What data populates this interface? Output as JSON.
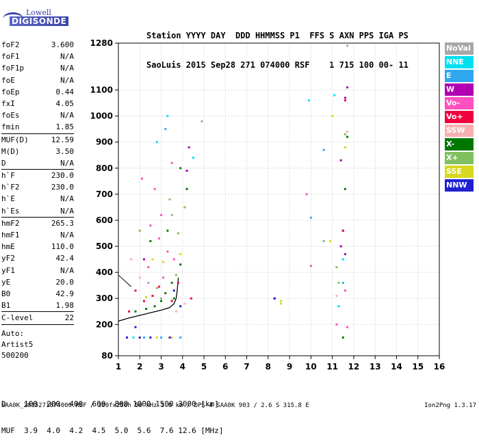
{
  "logo": {
    "line1": "Lowell",
    "line2": "DIGISONDE"
  },
  "header": {
    "row1": "Station YYYY DAY  DDD HHMMSS P1  FFS S AXN PPS IGA PS",
    "row2": "SaoLuis 2015 Sep28 271 074000 RSF    1 715 100 00- 11"
  },
  "params": [
    {
      "name": "foF2",
      "value": "3.600"
    },
    {
      "name": "foF1",
      "value": "N/A"
    },
    {
      "name": "foF1p",
      "value": "N/A"
    },
    {
      "name": "foE",
      "value": "N/A"
    },
    {
      "name": "foEp",
      "value": "0.44"
    },
    {
      "name": "fxI",
      "value": "4.05"
    },
    {
      "name": "foEs",
      "value": "N/A"
    },
    {
      "name": "fmin",
      "value": "1.85",
      "sep": true
    },
    {
      "name": "MUF(D)",
      "value": "12.59"
    },
    {
      "name": "M(D)",
      "value": "3.50"
    },
    {
      "name": "D",
      "value": "N/A",
      "sep": true
    },
    {
      "name": "h`F",
      "value": "230.0"
    },
    {
      "name": "h`F2",
      "value": "230.0"
    },
    {
      "name": "h`E",
      "value": "N/A"
    },
    {
      "name": "h`Es",
      "value": "N/A",
      "sep": true
    },
    {
      "name": "hmF2",
      "value": "265.3"
    },
    {
      "name": "hmF1",
      "value": "N/A"
    },
    {
      "name": "hmE",
      "value": "110.0"
    },
    {
      "name": "yF2",
      "value": "42.4"
    },
    {
      "name": "yF1",
      "value": "N/A"
    },
    {
      "name": "yE",
      "value": "20.0"
    },
    {
      "name": "B0",
      "value": "42.9"
    },
    {
      "name": "B1",
      "value": "1.98",
      "sep": true
    },
    {
      "name": "C-level",
      "value": "22",
      "sep": true
    }
  ],
  "auto": {
    "line1": "Auto:",
    "line2": "Artist5",
    "line3": "500200"
  },
  "muf_table": {
    "row1": "D    100  200  400  600  800 1000 1500 3000 [km]",
    "row2": "MUF  3.9  4.0  4.2  4.5  5.0  5.6  7.6 12.6 [MHz]"
  },
  "footer": "SAA0K_2015271074000.RSF / 300fx256h 50 kHz 5.0 km / DPS-4 SAA0K 903 / 2.6 S 315.8 E",
  "version": "Ion2Png 1.3.17",
  "legend": [
    {
      "label": "NoVal",
      "color": "#a8a8a8"
    },
    {
      "label": "NNE",
      "color": "#00e0f0"
    },
    {
      "label": "E",
      "color": "#30a8f0"
    },
    {
      "label": "W",
      "color": "#b000b0"
    },
    {
      "label": "Vo-",
      "color": "#ff50c0"
    },
    {
      "label": "Vo+",
      "color": "#f00040"
    },
    {
      "label": "SSW",
      "color": "#f8b0b0"
    },
    {
      "label": "X-",
      "color": "#007800"
    },
    {
      "label": "X+",
      "color": "#80c060"
    },
    {
      "label": "SSE",
      "color": "#d8d820"
    },
    {
      "label": "NNW",
      "color": "#2020d0"
    }
  ],
  "chart_data": {
    "type": "scatter",
    "xlim": [
      1,
      16
    ],
    "ylim": [
      80,
      1280
    ],
    "x_ticks": [
      1,
      2,
      3,
      4,
      5,
      6,
      7,
      8,
      9,
      10,
      11,
      12,
      13,
      14,
      15,
      16
    ],
    "y_ticks": [
      80,
      200,
      300,
      400,
      500,
      600,
      700,
      800,
      900,
      1000,
      1100,
      1280
    ],
    "grid": true,
    "legend_position": "right",
    "trace": [
      [
        1.0,
        213
      ],
      [
        1.5,
        225
      ],
      [
        2.0,
        235
      ],
      [
        2.5,
        245
      ],
      [
        3.0,
        255
      ],
      [
        3.4,
        265
      ],
      [
        3.6,
        280
      ],
      [
        3.7,
        300
      ],
      [
        3.75,
        330
      ],
      [
        3.8,
        380
      ]
    ],
    "short_line": [
      [
        1.0,
        390
      ],
      [
        1.6,
        345
      ]
    ],
    "series": [
      {
        "name": "NoVal",
        "color": "#a8a8a8",
        "points": [
          [
            11.7,
            1270
          ],
          [
            2.4,
            360
          ],
          [
            3.0,
            300
          ],
          [
            3.5,
            620
          ],
          [
            4.9,
            980
          ]
        ]
      },
      {
        "name": "NNE",
        "color": "#00e0f0",
        "points": [
          [
            9.9,
            1060
          ],
          [
            11.1,
            1080
          ],
          [
            11.5,
            450
          ],
          [
            11.3,
            270
          ],
          [
            4.5,
            840
          ],
          [
            3.3,
            1000
          ],
          [
            2.8,
            900
          ],
          [
            1.7,
            150
          ]
        ]
      },
      {
        "name": "E",
        "color": "#30a8f0",
        "points": [
          [
            10.6,
            870
          ],
          [
            10.0,
            610
          ],
          [
            11.5,
            360
          ],
          [
            3.0,
            150
          ],
          [
            2.2,
            150
          ],
          [
            3.9,
            150
          ],
          [
            3.2,
            950
          ]
        ]
      },
      {
        "name": "W",
        "color": "#b000b0",
        "points": [
          [
            11.7,
            1110
          ],
          [
            11.6,
            1070
          ],
          [
            11.4,
            830
          ],
          [
            11.5,
            560
          ],
          [
            11.6,
            470
          ],
          [
            11.4,
            500
          ],
          [
            8.3,
            300
          ],
          [
            4.3,
            880
          ],
          [
            4.2,
            790
          ],
          [
            2.2,
            450
          ]
        ]
      },
      {
        "name": "Vo-",
        "color": "#ff50c0",
        "points": [
          [
            11.6,
            330
          ],
          [
            11.7,
            190
          ],
          [
            11.2,
            200
          ],
          [
            10.0,
            425
          ],
          [
            9.8,
            700
          ],
          [
            2.5,
            580
          ],
          [
            2.9,
            530
          ],
          [
            3.3,
            480
          ],
          [
            3.6,
            450
          ],
          [
            3.0,
            620
          ],
          [
            2.7,
            720
          ],
          [
            2.1,
            760
          ],
          [
            3.5,
            820
          ],
          [
            2.4,
            420
          ],
          [
            3.1,
            380
          ]
        ]
      },
      {
        "name": "Vo+",
        "color": "#f00040",
        "points": [
          [
            11.6,
            1060
          ],
          [
            11.5,
            560
          ],
          [
            1.8,
            330
          ],
          [
            2.2,
            290
          ],
          [
            2.6,
            310
          ],
          [
            3.5,
            290
          ],
          [
            4.4,
            300
          ],
          [
            3.8,
            360
          ],
          [
            2.9,
            345
          ],
          [
            1.5,
            250
          ]
        ]
      },
      {
        "name": "SSW",
        "color": "#f8b0b0",
        "points": [
          [
            11.2,
            310
          ],
          [
            11.7,
            940
          ],
          [
            4.1,
            280
          ],
          [
            3.7,
            250
          ],
          [
            2.0,
            380
          ],
          [
            1.6,
            450
          ]
        ]
      },
      {
        "name": "X-",
        "color": "#007800",
        "points": [
          [
            11.5,
            150
          ],
          [
            11.6,
            720
          ],
          [
            11.7,
            920
          ],
          [
            4.2,
            720
          ],
          [
            3.9,
            430
          ],
          [
            3.5,
            360
          ],
          [
            3.2,
            320
          ],
          [
            2.7,
            270
          ],
          [
            2.3,
            260
          ],
          [
            1.8,
            250
          ],
          [
            3.9,
            800
          ],
          [
            3.6,
            300
          ],
          [
            3.0,
            290
          ],
          [
            2.5,
            520
          ],
          [
            3.3,
            560
          ]
        ]
      },
      {
        "name": "X+",
        "color": "#80c060",
        "points": [
          [
            10.6,
            520
          ],
          [
            11.3,
            360
          ],
          [
            11.2,
            420
          ],
          [
            11.6,
            930
          ],
          [
            4.1,
            650
          ],
          [
            3.8,
            550
          ],
          [
            3.4,
            680
          ],
          [
            2.0,
            560
          ],
          [
            3.7,
            390
          ],
          [
            2.8,
            340
          ]
        ]
      },
      {
        "name": "SSE",
        "color": "#d8d820",
        "points": [
          [
            8.6,
            280
          ],
          [
            8.6,
            290
          ],
          [
            11.6,
            880
          ],
          [
            10.9,
            520
          ],
          [
            11.0,
            1000
          ],
          [
            3.1,
            440
          ],
          [
            2.6,
            450
          ],
          [
            3.5,
            150
          ],
          [
            2.8,
            150
          ],
          [
            3.9,
            470
          ],
          [
            2.3,
            305
          ]
        ]
      },
      {
        "name": "NNW",
        "color": "#2020d0",
        "points": [
          [
            8.3,
            300
          ],
          [
            1.8,
            190
          ],
          [
            1.4,
            150
          ],
          [
            2.0,
            150
          ],
          [
            2.5,
            150
          ],
          [
            3.4,
            150
          ],
          [
            3.9,
            270
          ],
          [
            3.6,
            330
          ]
        ]
      }
    ]
  }
}
